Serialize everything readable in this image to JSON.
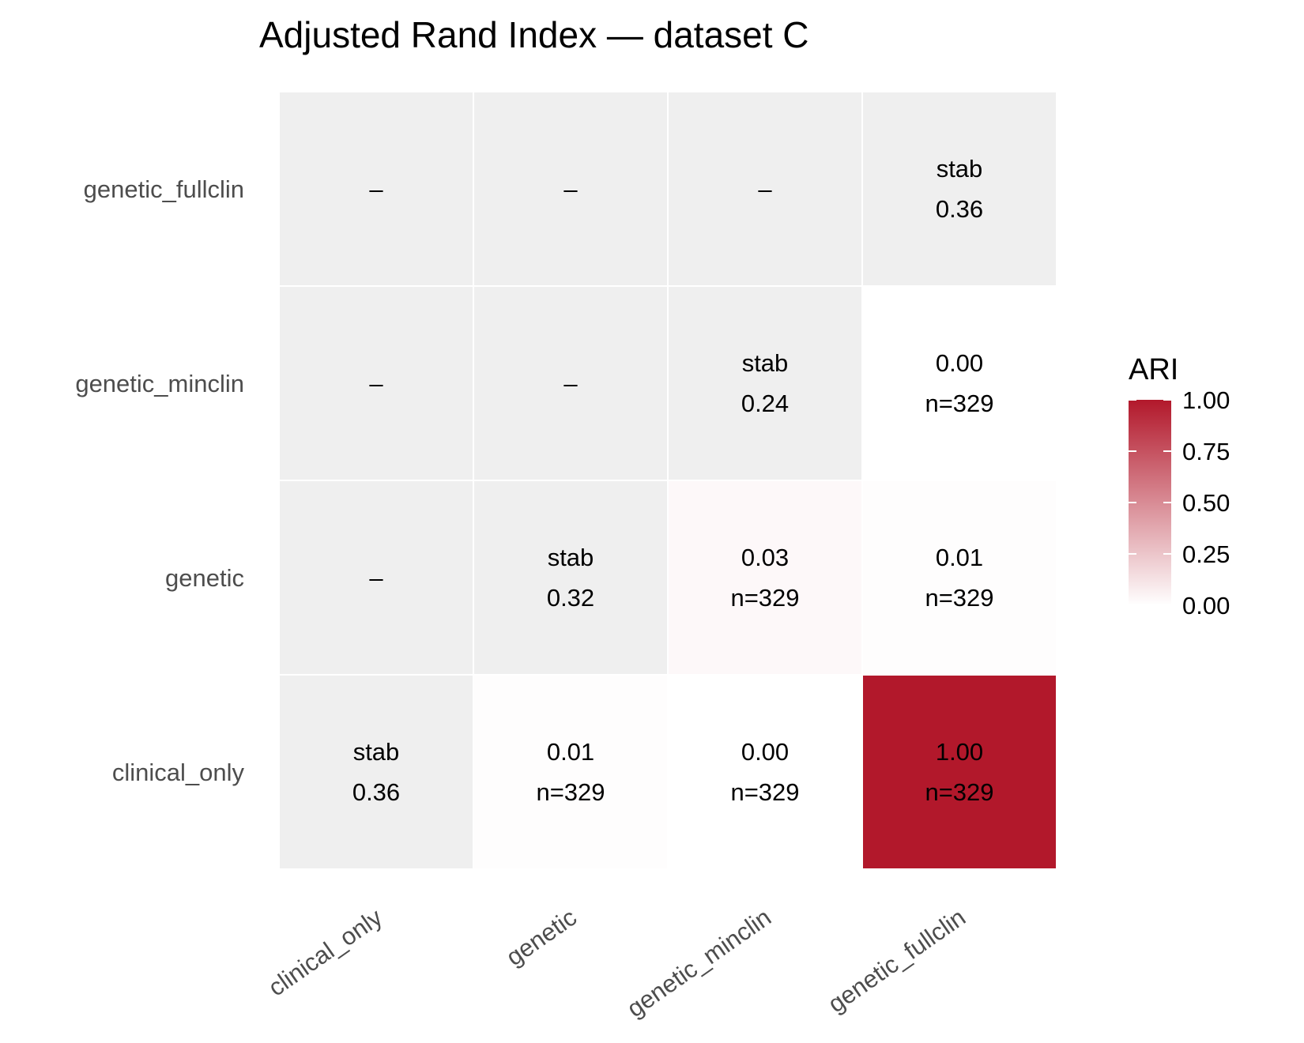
{
  "chart_data": {
    "type": "heatmap",
    "title": "Adjusted Rand Index — dataset C",
    "x_categories": [
      "clinical_only",
      "genetic",
      "genetic_minclin",
      "genetic_fullclin"
    ],
    "y_categories": [
      "clinical_only",
      "genetic",
      "genetic_minclin",
      "genetic_fullclin"
    ],
    "cells": [
      {
        "x": "clinical_only",
        "y": "clinical_only",
        "kind": "diag",
        "line1": "stab",
        "line2": "0.36"
      },
      {
        "x": "genetic",
        "y": "clinical_only",
        "kind": "value",
        "value": 0.01,
        "line1": "0.01",
        "line2": "n=329"
      },
      {
        "x": "genetic_minclin",
        "y": "clinical_only",
        "kind": "value",
        "value": 0.0,
        "line1": "0.00",
        "line2": "n=329"
      },
      {
        "x": "genetic_fullclin",
        "y": "clinical_only",
        "kind": "value",
        "value": 1.0,
        "line1": "1.00",
        "line2": "n=329"
      },
      {
        "x": "clinical_only",
        "y": "genetic",
        "kind": "na",
        "line1": "–"
      },
      {
        "x": "genetic",
        "y": "genetic",
        "kind": "diag",
        "line1": "stab",
        "line2": "0.32"
      },
      {
        "x": "genetic_minclin",
        "y": "genetic",
        "kind": "value",
        "value": 0.03,
        "line1": "0.03",
        "line2": "n=329"
      },
      {
        "x": "genetic_fullclin",
        "y": "genetic",
        "kind": "value",
        "value": 0.01,
        "line1": "0.01",
        "line2": "n=329"
      },
      {
        "x": "clinical_only",
        "y": "genetic_minclin",
        "kind": "na",
        "line1": "–"
      },
      {
        "x": "genetic",
        "y": "genetic_minclin",
        "kind": "na",
        "line1": "–"
      },
      {
        "x": "genetic_minclin",
        "y": "genetic_minclin",
        "kind": "diag",
        "line1": "stab",
        "line2": "0.24"
      },
      {
        "x": "genetic_fullclin",
        "y": "genetic_minclin",
        "kind": "value",
        "value": 0.0,
        "line1": "0.00",
        "line2": "n=329"
      },
      {
        "x": "clinical_only",
        "y": "genetic_fullclin",
        "kind": "na",
        "line1": "–"
      },
      {
        "x": "genetic",
        "y": "genetic_fullclin",
        "kind": "na",
        "line1": "–"
      },
      {
        "x": "genetic_minclin",
        "y": "genetic_fullclin",
        "kind": "na",
        "line1": "–"
      },
      {
        "x": "genetic_fullclin",
        "y": "genetic_fullclin",
        "kind": "diag",
        "line1": "stab",
        "line2": "0.36"
      }
    ],
    "legend": {
      "title": "ARI",
      "placement": "right",
      "range": [
        0,
        1
      ],
      "ticks": [
        "0.00",
        "0.25",
        "0.50",
        "0.75",
        "1.00"
      ],
      "low_color": "#ffffff",
      "high_color": "#b2182b"
    },
    "diag_na_fill": "#efefef",
    "grid": false
  }
}
